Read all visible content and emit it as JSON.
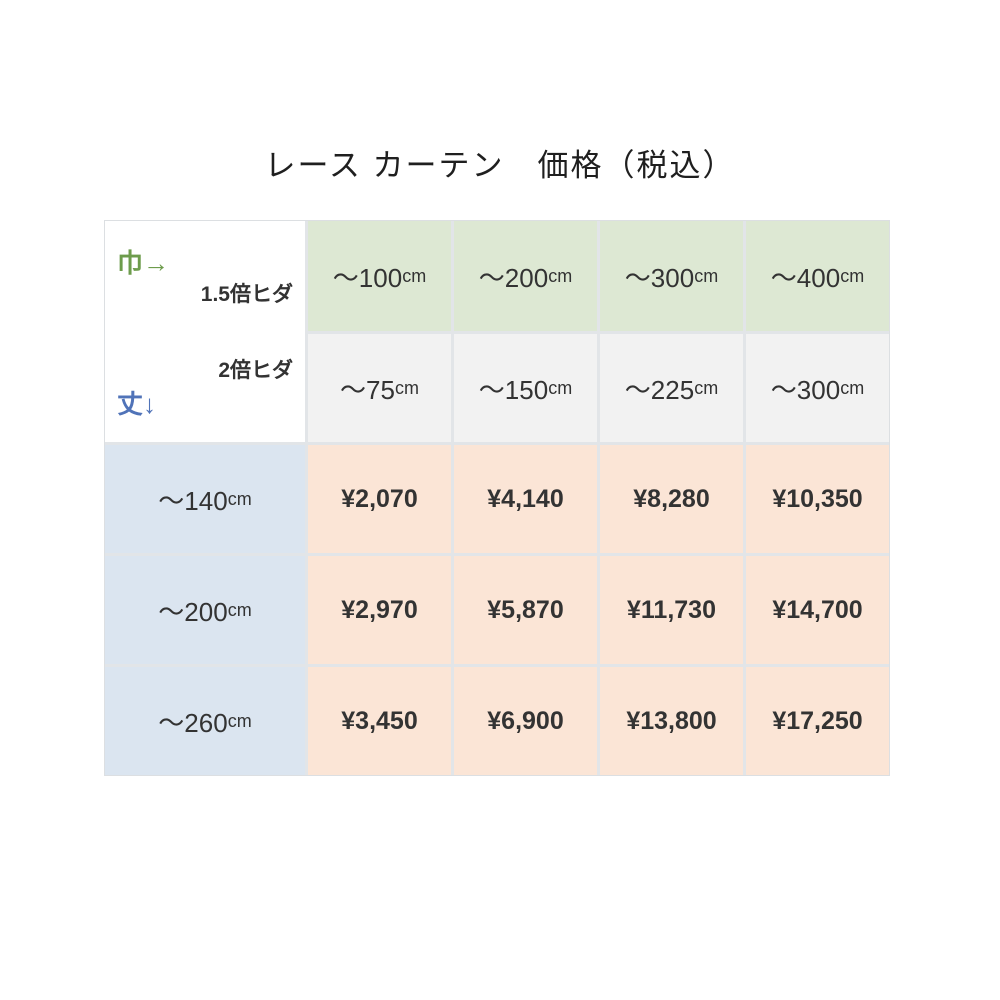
{
  "title": "レース カーテン　価格（税込）",
  "table": {
    "corner": {
      "width_axis_label": "巾→",
      "height_axis_label": "丈↓",
      "pleat_row1_label": "1.5倍ヒダ",
      "pleat_row2_label": "2倍ヒダ"
    },
    "width_headers_pleat15": [
      {
        "value": "～100",
        "unit": "cm"
      },
      {
        "value": "～200",
        "unit": "cm"
      },
      {
        "value": "～300",
        "unit": "cm"
      },
      {
        "value": "～400",
        "unit": "cm"
      }
    ],
    "width_headers_pleat2": [
      {
        "value": "～75",
        "unit": "cm"
      },
      {
        "value": "～150",
        "unit": "cm"
      },
      {
        "value": "～225",
        "unit": "cm"
      },
      {
        "value": "～300",
        "unit": "cm"
      }
    ],
    "rows": [
      {
        "height": {
          "value": "～140",
          "unit": "cm"
        },
        "prices": [
          "¥2,070",
          "¥4,140",
          "¥8,280",
          "¥10,350"
        ]
      },
      {
        "height": {
          "value": "～200",
          "unit": "cm"
        },
        "prices": [
          "¥2,970",
          "¥5,870",
          "¥11,730",
          "¥14,700"
        ]
      },
      {
        "height": {
          "value": "～260",
          "unit": "cm"
        },
        "prices": [
          "¥3,450",
          "¥6,900",
          "¥13,800",
          "¥17,250"
        ]
      }
    ]
  },
  "colors": {
    "header_green_bg": "#dde8d3",
    "header_gray_bg": "#f2f2f2",
    "height_label_blue_bg": "#dbe5f0",
    "price_peach_bg": "#fbe5d6",
    "width_axis_green": "#6d9c4c",
    "height_axis_blue": "#5073b8",
    "gridline": "#e2e5e8",
    "text": "#333333"
  },
  "chart_data": {
    "type": "table",
    "title": "レース カーテン　価格（税込）",
    "column_header_label": "巾→",
    "row_header_label": "丈↓",
    "column_groups": [
      {
        "pleat": "1.5倍ヒダ",
        "widths": [
          "～100cm",
          "～200cm",
          "～300cm",
          "～400cm"
        ]
      },
      {
        "pleat": "2倍ヒダ",
        "widths": [
          "～75cm",
          "～150cm",
          "～225cm",
          "～300cm"
        ]
      }
    ],
    "row_heights": [
      "～140cm",
      "～200cm",
      "～260cm"
    ],
    "prices_yen": [
      [
        2070,
        4140,
        8280,
        10350
      ],
      [
        2970,
        5870,
        11730,
        14700
      ],
      [
        3450,
        6900,
        13800,
        17250
      ]
    ]
  }
}
